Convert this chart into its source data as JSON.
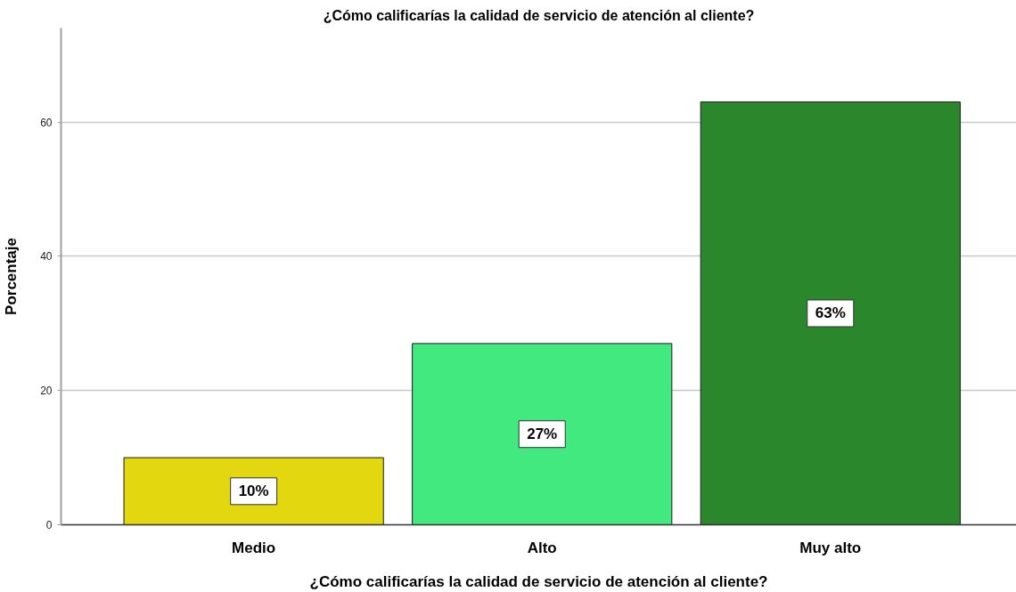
{
  "chart_data": {
    "type": "bar",
    "title": "¿Cómo calificarías la calidad de servicio de atención al cliente?",
    "xlabel": "¿Cómo calificarías la calidad de servicio de atención al cliente?",
    "ylabel": "Porcentaje",
    "categories": [
      "Medio",
      "Alto",
      "Muy alto"
    ],
    "values": [
      10,
      27,
      63
    ],
    "colors": [
      "#e3d80f",
      "#41e97e",
      "#2a872b"
    ],
    "value_labels": [
      "10%",
      "27%",
      "63%"
    ],
    "ylim": [
      0,
      74
    ],
    "yticks": [
      0,
      20,
      40,
      60
    ],
    "grid": "y"
  }
}
